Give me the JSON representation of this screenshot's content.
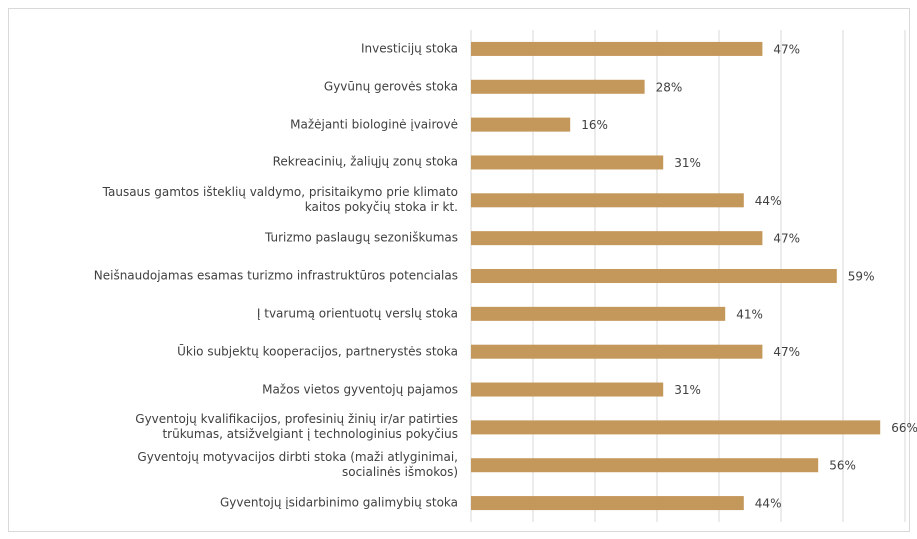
{
  "chart_data": {
    "type": "bar",
    "orientation": "horizontal",
    "categories": [
      "Investicijų stoka",
      "Gyvūnų gerovės stoka",
      "Mažėjanti biologinė įvairovė",
      "Rekreacinių, žaliųjų zonų stoka",
      "Tausaus gamtos išteklių valdymo, prisitaikymo prie klimato\nkaitos pokyčių stoka ir kt.",
      "Turizmo paslaugų sezoniškumas",
      "Neišnaudojamas esamas turizmo infrastruktūros potencialas",
      "Į tvarumą orientuotų verslų stoka",
      "Ūkio subjektų kooperacijos, partnerystės stoka",
      "Mažos vietos gyventojų pajamos",
      "Gyventojų kvalifikacijos, profesinių žinių ir/ar patirties\ntrūkumas, atsižvelgiant į technologinius pokyčius",
      "Gyventojų motyvacijos dirbti stoka (maži atlyginimai,\nsocialinės išmokos)",
      "Gyventojų įsidarbinimo galimybių stoka"
    ],
    "values": [
      47,
      28,
      16,
      31,
      44,
      47,
      59,
      41,
      47,
      31,
      66,
      56,
      44
    ],
    "value_labels": [
      "47%",
      "28%",
      "16%",
      "31%",
      "44%",
      "47%",
      "59%",
      "41%",
      "47%",
      "31%",
      "66%",
      "56%",
      "44%"
    ],
    "color": "#c4975a",
    "xlim": [
      0,
      70
    ],
    "xticks": [
      0,
      10,
      20,
      30,
      40,
      50,
      60,
      70
    ],
    "grid": true
  }
}
